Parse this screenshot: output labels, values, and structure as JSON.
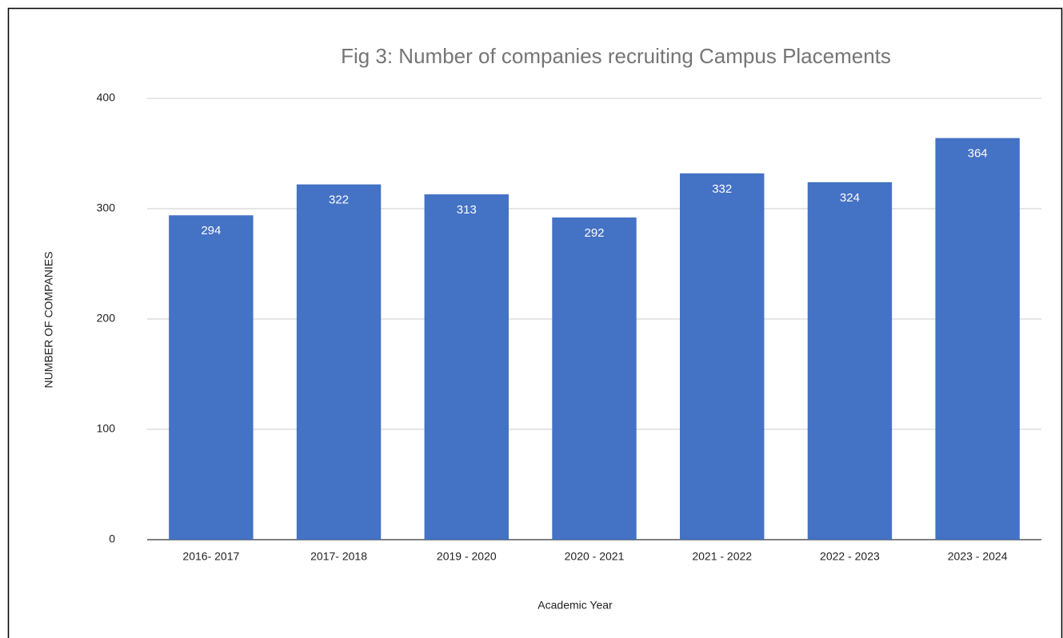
{
  "chart_data": {
    "type": "bar",
    "title": "Fig 3: Number of companies recruiting Campus Placements",
    "x_label": "Academic Year",
    "y_label": "NUMBER OF COMPANIES",
    "categories": [
      "2016- 2017",
      "2017- 2018",
      "2019 - 2020",
      "2020 - 2021",
      "2021 - 2022",
      "2022 - 2023",
      "2023 - 2024"
    ],
    "values": [
      294,
      322,
      313,
      292,
      332,
      324,
      364
    ],
    "color": "#4472c4",
    "ylim": [
      0,
      400
    ],
    "yticks": [
      0,
      100,
      200,
      300,
      400
    ],
    "grid": true
  }
}
